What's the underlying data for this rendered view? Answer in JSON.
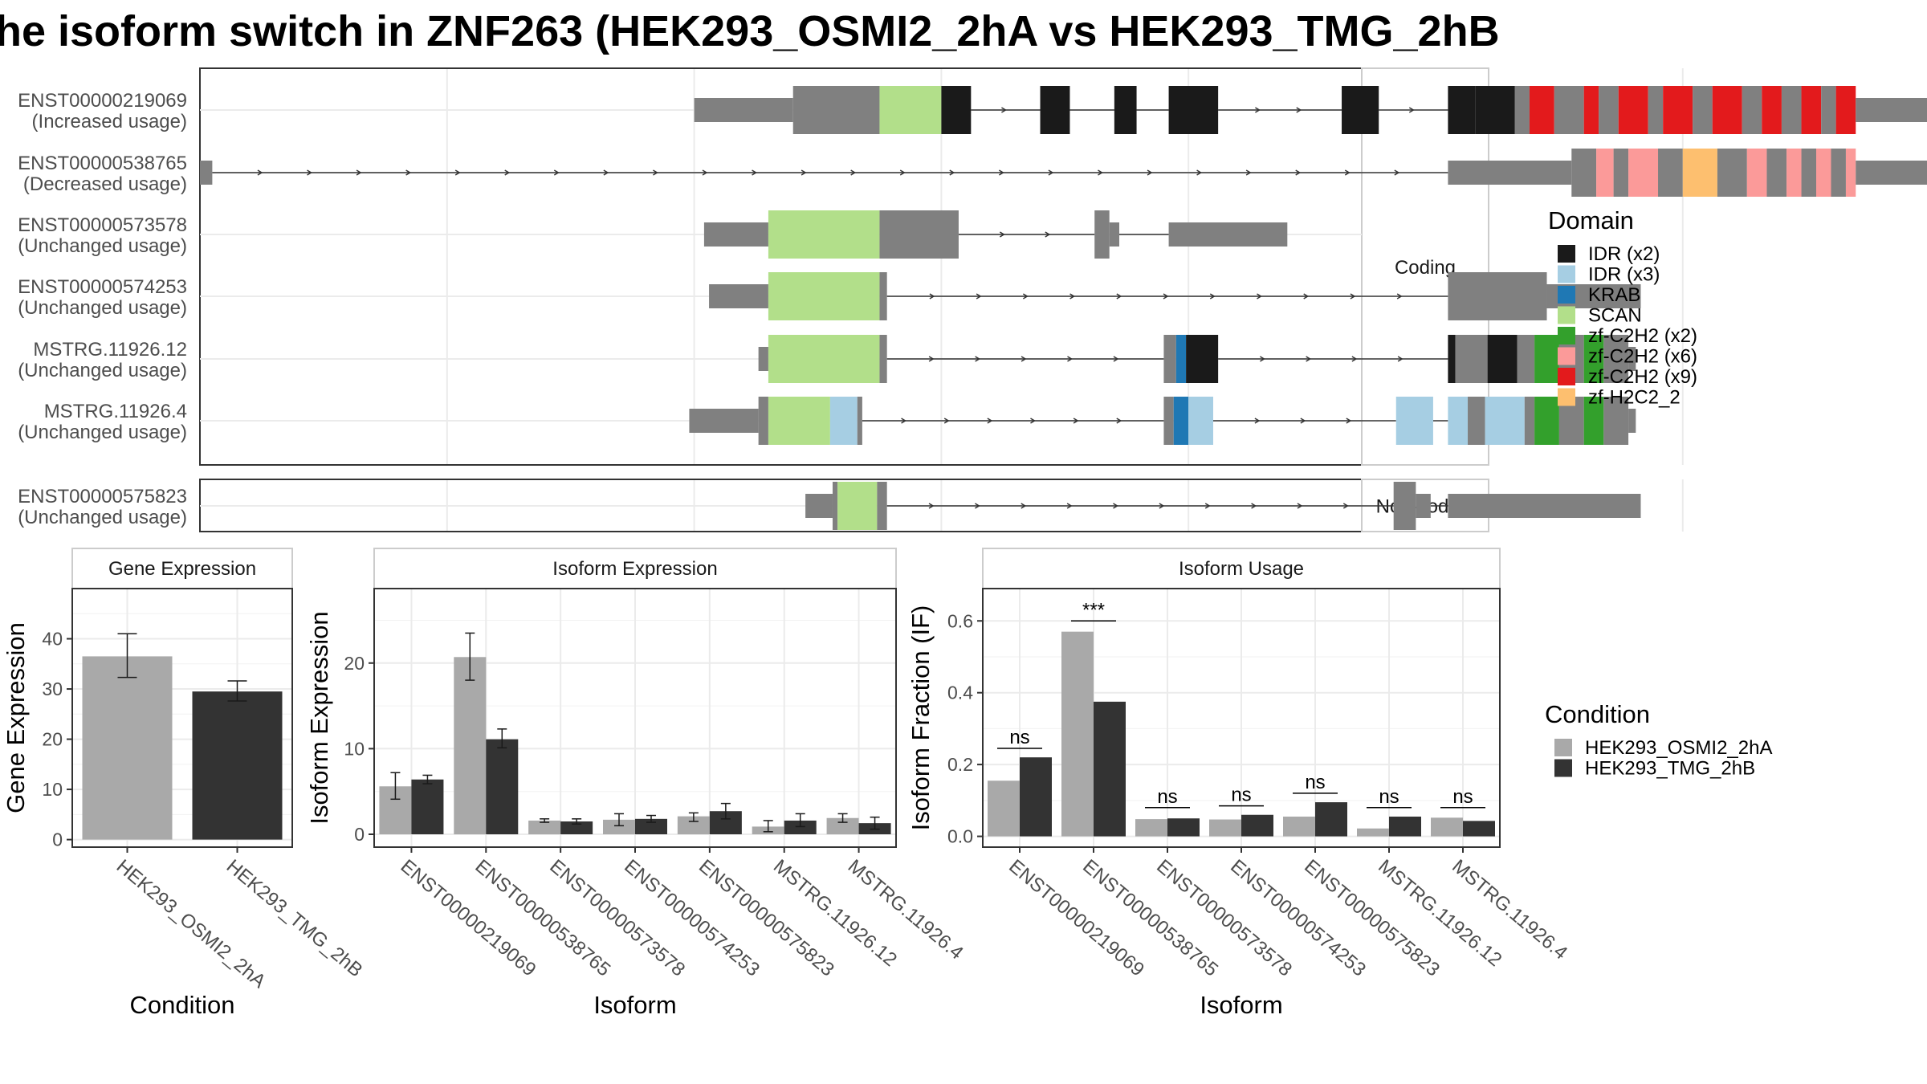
{
  "title": "he isoform switch in ZNF263 (HEK293_OSMI2_2hA vs HEK293_TMG_2hB",
  "structure": {
    "facets": [
      "Coding",
      "Non-coding"
    ],
    "coding": [
      {
        "id": "ENST00000219069",
        "usage": "(Increased usage)",
        "exons": [
          [
            300,
            340,
            "thin"
          ],
          [
            340,
            375,
            "thick"
          ],
          [
            375,
            400,
            "SCAN"
          ],
          [
            400,
            412,
            "IDR2"
          ],
          [
            440,
            452,
            "IDR2"
          ],
          [
            470,
            479,
            "IDR2"
          ],
          [
            492,
            512,
            "IDR2"
          ],
          [
            562,
            577,
            "IDR2"
          ],
          [
            605,
            616,
            "IDR2"
          ],
          [
            616,
            632,
            "IDR2"
          ],
          [
            632,
            638,
            "thick"
          ],
          [
            638,
            648,
            "C2H2x9"
          ],
          [
            648,
            660,
            "thick"
          ],
          [
            660,
            666,
            "C2H2x9"
          ],
          [
            666,
            674,
            "thick"
          ],
          [
            674,
            686,
            "C2H2x9"
          ],
          [
            686,
            692,
            "thick"
          ],
          [
            692,
            704,
            "C2H2x9"
          ],
          [
            704,
            712,
            "thick"
          ],
          [
            712,
            724,
            "C2H2x9"
          ],
          [
            724,
            732,
            "thick"
          ],
          [
            732,
            740,
            "C2H2x9"
          ],
          [
            740,
            748,
            "thick"
          ],
          [
            748,
            756,
            "C2H2x9"
          ],
          [
            756,
            762,
            "thick"
          ],
          [
            762,
            770,
            "C2H2x9"
          ],
          [
            770,
            800,
            "thin"
          ]
        ]
      },
      {
        "id": "ENST00000538765",
        "usage": "(Decreased usage)",
        "exons": [
          [
            100,
            105,
            "thin"
          ],
          [
            605,
            655,
            "thin"
          ],
          [
            655,
            665,
            "thick"
          ],
          [
            665,
            672,
            "C2H2x6"
          ],
          [
            672,
            678,
            "thick"
          ],
          [
            678,
            690,
            "C2H2x6"
          ],
          [
            690,
            700,
            "thick"
          ],
          [
            700,
            714,
            "H2C2"
          ],
          [
            714,
            726,
            "thick"
          ],
          [
            726,
            734,
            "C2H2x6"
          ],
          [
            734,
            742,
            "thick"
          ],
          [
            742,
            748,
            "C2H2x6"
          ],
          [
            748,
            754,
            "thick"
          ],
          [
            754,
            760,
            "C2H2x6"
          ],
          [
            760,
            766,
            "thick"
          ],
          [
            766,
            770,
            "C2H2x6"
          ],
          [
            770,
            800,
            "thin"
          ]
        ]
      },
      {
        "id": "ENST00000573578",
        "usage": "(Unchanged usage)",
        "exons": [
          [
            304,
            330,
            "thin"
          ],
          [
            330,
            375,
            "SCAN"
          ],
          [
            375,
            407,
            "thick"
          ],
          [
            462,
            468,
            "thick"
          ],
          [
            468,
            472,
            "thin"
          ],
          [
            492,
            540,
            "thin"
          ]
        ]
      },
      {
        "id": "ENST00000574253",
        "usage": "(Unchanged usage)",
        "exons": [
          [
            306,
            330,
            "thin"
          ],
          [
            330,
            375,
            "SCAN"
          ],
          [
            375,
            378,
            "thick"
          ],
          [
            605,
            645,
            "thick"
          ],
          [
            645,
            683,
            "thin"
          ]
        ]
      },
      {
        "id": "MSTRG.11926.12",
        "usage": "(Unchanged usage)",
        "exons": [
          [
            326,
            330,
            "thin"
          ],
          [
            330,
            375,
            "SCAN"
          ],
          [
            375,
            378,
            "thick"
          ],
          [
            490,
            495,
            "thick"
          ],
          [
            495,
            499,
            "KRAB"
          ],
          [
            499,
            512,
            "IDR2"
          ],
          [
            605,
            608,
            "IDR2"
          ],
          [
            608,
            621,
            "thick"
          ],
          [
            621,
            633,
            "IDR2"
          ],
          [
            633,
            640,
            "thick"
          ],
          [
            640,
            650,
            "C2H2x2"
          ],
          [
            650,
            660,
            "thick"
          ],
          [
            660,
            668,
            "C2H2x2"
          ],
          [
            668,
            678,
            "thick"
          ],
          [
            678,
            681,
            "thin"
          ]
        ]
      },
      {
        "id": "MSTRG.11926.4",
        "usage": "(Unchanged usage)",
        "exons": [
          [
            298,
            326,
            "thin"
          ],
          [
            326,
            330,
            "thick"
          ],
          [
            330,
            355,
            "SCAN"
          ],
          [
            355,
            366,
            "IDR3"
          ],
          [
            366,
            368,
            "thick"
          ],
          [
            490,
            494,
            "thick"
          ],
          [
            494,
            500,
            "KRAB"
          ],
          [
            500,
            510,
            "IDR3"
          ],
          [
            584,
            599,
            "IDR3"
          ],
          [
            605,
            613,
            "IDR3"
          ],
          [
            613,
            620,
            "thick"
          ],
          [
            620,
            636,
            "IDR3"
          ],
          [
            636,
            640,
            "thick"
          ],
          [
            640,
            650,
            "C2H2x2"
          ],
          [
            650,
            660,
            "thick"
          ],
          [
            660,
            668,
            "C2H2x2"
          ],
          [
            668,
            678,
            "thick"
          ],
          [
            678,
            681,
            "thin"
          ]
        ]
      }
    ],
    "noncoding": [
      {
        "id": "ENST00000575823",
        "usage": "(Unchanged usage)",
        "exons": [
          [
            345,
            356,
            "thin"
          ],
          [
            356,
            358,
            "thick"
          ],
          [
            358,
            374,
            "SCAN"
          ],
          [
            374,
            378,
            "thick"
          ],
          [
            583,
            592,
            "thick"
          ],
          [
            592,
            598,
            "thin"
          ],
          [
            605,
            683,
            "thin"
          ]
        ]
      }
    ]
  },
  "legend_domain": {
    "title": "Domain",
    "items": [
      {
        "label": "IDR (x2)",
        "color": "#1A1A1A"
      },
      {
        "label": "IDR (x3)",
        "color": "#A6CEE3"
      },
      {
        "label": "KRAB",
        "color": "#1F78B4"
      },
      {
        "label": "SCAN",
        "color": "#B2DF8A"
      },
      {
        "label": "zf-C2H2 (x2)",
        "color": "#33A02C"
      },
      {
        "label": "zf-C2H2 (x6)",
        "color": "#FB9A99"
      },
      {
        "label": "zf-C2H2 (x9)",
        "color": "#E31A1C"
      },
      {
        "label": "zf-H2C2_2",
        "color": "#FDBF6F"
      }
    ]
  },
  "legend_condition": {
    "title": "Condition",
    "items": [
      {
        "label": "HEK293_OSMI2_2hA",
        "color": "#A9A9A9"
      },
      {
        "label": "HEK293_TMG_2hB",
        "color": "#333333"
      }
    ]
  },
  "chart_data": [
    {
      "type": "bar",
      "title": "Gene Expression",
      "xlabel": "Condition",
      "ylabel": "Gene Expression",
      "categories": [
        "HEK293_OSMI2_2hA",
        "HEK293_TMG_2hB"
      ],
      "values": [
        36.5,
        29.5
      ],
      "errors": [
        [
          32.3,
          41.0
        ],
        [
          27.6,
          31.6
        ]
      ],
      "colors": [
        "#A9A9A9",
        "#333333"
      ],
      "ylim": [
        -1.5,
        50
      ],
      "yticks": [
        0,
        10,
        20,
        30,
        40
      ]
    },
    {
      "type": "bar",
      "title": "Isoform Expression",
      "xlabel": "Isoform",
      "ylabel": "Isoform Expression",
      "categories": [
        "ENST00000219069",
        "ENST00000538765",
        "ENST00000573578",
        "ENST00000574253",
        "ENST00000575823",
        "MSTRG.11926.12",
        "MSTRG.11926.4"
      ],
      "series": [
        {
          "name": "HEK293_OSMI2_2hA",
          "values": [
            5.6,
            20.7,
            1.6,
            1.7,
            2.1,
            0.9,
            1.9
          ],
          "errors": [
            [
              4.1,
              7.2
            ],
            [
              18.0,
              23.5
            ],
            [
              1.4,
              1.8
            ],
            [
              1.0,
              2.4
            ],
            [
              1.5,
              2.5
            ],
            [
              0.3,
              1.6
            ],
            [
              1.4,
              2.4
            ]
          ]
        },
        {
          "name": "HEK293_TMG_2hB",
          "values": [
            6.4,
            11.1,
            1.5,
            1.8,
            2.7,
            1.6,
            1.3
          ],
          "errors": [
            [
              5.9,
              6.9
            ],
            [
              10.1,
              12.3
            ],
            [
              1.2,
              1.8
            ],
            [
              1.4,
              2.2
            ],
            [
              1.8,
              3.6
            ],
            [
              0.9,
              2.4
            ],
            [
              0.6,
              2.0
            ]
          ]
        }
      ],
      "ylim": [
        -1.5,
        28.7
      ],
      "yticks": [
        0,
        10,
        20
      ]
    },
    {
      "type": "bar",
      "title": "Isoform Usage",
      "xlabel": "Isoform",
      "ylabel": "Isoform Fraction (IF)",
      "categories": [
        "ENST00000219069",
        "ENST00000538765",
        "ENST00000573578",
        "ENST00000574253",
        "ENST00000575823",
        "MSTRG.11926.12",
        "MSTRG.11926.4"
      ],
      "series": [
        {
          "name": "HEK293_OSMI2_2hA",
          "values": [
            0.155,
            0.57,
            0.048,
            0.047,
            0.055,
            0.022,
            0.052
          ]
        },
        {
          "name": "HEK293_TMG_2hB",
          "values": [
            0.22,
            0.375,
            0.05,
            0.06,
            0.095,
            0.055,
            0.043
          ]
        }
      ],
      "significance": [
        "ns",
        "***",
        "ns",
        "ns",
        "ns",
        "ns",
        "ns"
      ],
      "sig_line_y": [
        0.245,
        0.6,
        0.08,
        0.085,
        0.12,
        0.08,
        0.08
      ],
      "ylim": [
        -0.03,
        0.69
      ],
      "yticks": [
        0.0,
        0.2,
        0.4,
        0.6
      ],
      "ytick_labels": [
        "0.0",
        "0.2",
        "0.4",
        "0.6"
      ]
    }
  ]
}
